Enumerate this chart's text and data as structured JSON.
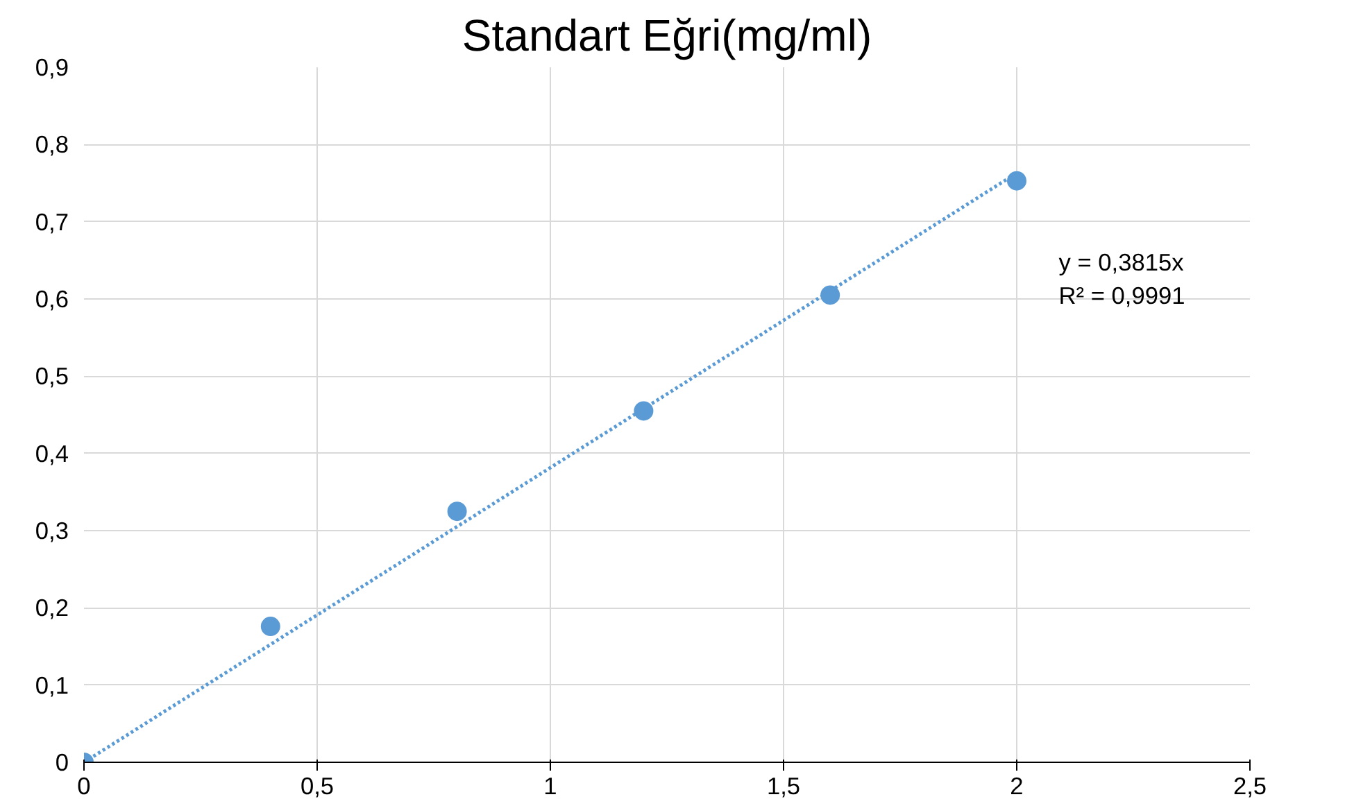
{
  "chart_data": {
    "type": "scatter",
    "title": "Standart Eğri(mg/ml)",
    "x": [
      0,
      0.4,
      0.8,
      1.2,
      1.6,
      2
    ],
    "series": [
      {
        "color": "#5b9bd5",
        "values": [
          0,
          0.176,
          0.325,
          0.455,
          0.605,
          0.753
        ]
      },
      {
        "type": "line",
        "color": "#5b9bd5",
        "x": [
          0,
          2
        ],
        "values": [
          0,
          0.763
        ],
        "line_style": "dotted",
        "marker": "none"
      }
    ],
    "xlim": [
      0,
      2.5
    ],
    "ylim": [
      0,
      0.9
    ],
    "xticks": [
      0,
      {
        "value": 0.5,
        "label": "0,5"
      },
      1,
      {
        "value": 1.5,
        "label": "1,5"
      },
      2,
      {
        "value": 2.5,
        "label": "2,5"
      }
    ],
    "yticks": [
      0,
      {
        "value": 0.1,
        "label": "0,1"
      },
      {
        "value": 0.2,
        "label": "0,2"
      },
      {
        "value": 0.3,
        "label": "0,3"
      },
      {
        "value": 0.4,
        "label": "0,4"
      },
      {
        "value": 0.5,
        "label": "0,5"
      },
      {
        "value": 0.6,
        "label": "0,6"
      },
      {
        "value": 0.7,
        "label": "0,7"
      },
      {
        "value": 0.8,
        "label": "0,8"
      },
      {
        "value": 0.9,
        "label": "0,9"
      }
    ],
    "annotations": [
      "y = 0,3815x",
      "R² = 0,9991"
    ],
    "grid": true
  }
}
